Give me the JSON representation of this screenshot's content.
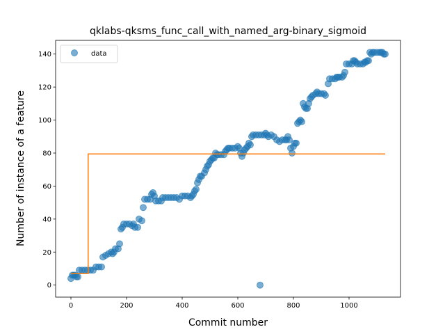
{
  "chart_data": {
    "type": "scatter",
    "title": "qklabs-qksms_func_call_with_named_arg-binary_sigmoid",
    "xlabel": "Commit number",
    "ylabel": "Number of instance of a feature",
    "xlim": [
      -55,
      1185
    ],
    "ylim": [
      -7.3,
      148.3
    ],
    "xticks": [
      0,
      200,
      400,
      600,
      800,
      1000
    ],
    "yticks": [
      0,
      20,
      40,
      60,
      80,
      100,
      120,
      140
    ],
    "grid": false,
    "legend_position": "top-left",
    "series": [
      {
        "name": "data",
        "kind": "scatter",
        "color": "#1f77b4",
        "points": [
          [
            0,
            4
          ],
          [
            5,
            6
          ],
          [
            10,
            6
          ],
          [
            15,
            6
          ],
          [
            20,
            5
          ],
          [
            25,
            5
          ],
          [
            30,
            9
          ],
          [
            40,
            9
          ],
          [
            50,
            9
          ],
          [
            60,
            9
          ],
          [
            70,
            9
          ],
          [
            80,
            9
          ],
          [
            90,
            11
          ],
          [
            100,
            11
          ],
          [
            110,
            11
          ],
          [
            115,
            17
          ],
          [
            125,
            18
          ],
          [
            135,
            19
          ],
          [
            145,
            20
          ],
          [
            150,
            19
          ],
          [
            155,
            20
          ],
          [
            160,
            22
          ],
          [
            170,
            22
          ],
          [
            175,
            25
          ],
          [
            180,
            34
          ],
          [
            185,
            35
          ],
          [
            190,
            37
          ],
          [
            200,
            37
          ],
          [
            210,
            37
          ],
          [
            220,
            36
          ],
          [
            225,
            37
          ],
          [
            230,
            35
          ],
          [
            240,
            35
          ],
          [
            245,
            40
          ],
          [
            255,
            39
          ],
          [
            260,
            47
          ],
          [
            265,
            52
          ],
          [
            275,
            52
          ],
          [
            285,
            52
          ],
          [
            290,
            55
          ],
          [
            295,
            56
          ],
          [
            300,
            54
          ],
          [
            305,
            51
          ],
          [
            315,
            51
          ],
          [
            325,
            51
          ],
          [
            330,
            53
          ],
          [
            340,
            53
          ],
          [
            350,
            53
          ],
          [
            360,
            53
          ],
          [
            370,
            53
          ],
          [
            380,
            53
          ],
          [
            390,
            52
          ],
          [
            400,
            54
          ],
          [
            410,
            54
          ],
          [
            420,
            54
          ],
          [
            430,
            53
          ],
          [
            435,
            54
          ],
          [
            440,
            55
          ],
          [
            445,
            57
          ],
          [
            450,
            58
          ],
          [
            455,
            62
          ],
          [
            460,
            64
          ],
          [
            465,
            66
          ],
          [
            470,
            66
          ],
          [
            480,
            68
          ],
          [
            485,
            70
          ],
          [
            490,
            72
          ],
          [
            495,
            73
          ],
          [
            500,
            75
          ],
          [
            505,
            76
          ],
          [
            510,
            77
          ],
          [
            515,
            77
          ],
          [
            520,
            80
          ],
          [
            525,
            79
          ],
          [
            530,
            79
          ],
          [
            540,
            79
          ],
          [
            550,
            79
          ],
          [
            555,
            81
          ],
          [
            560,
            82
          ],
          [
            565,
            83
          ],
          [
            570,
            83
          ],
          [
            580,
            83
          ],
          [
            590,
            83
          ],
          [
            600,
            84
          ],
          [
            605,
            83
          ],
          [
            610,
            80
          ],
          [
            615,
            78
          ],
          [
            620,
            80
          ],
          [
            625,
            82
          ],
          [
            630,
            83
          ],
          [
            635,
            84
          ],
          [
            640,
            86
          ],
          [
            645,
            85
          ],
          [
            650,
            90
          ],
          [
            655,
            91
          ],
          [
            665,
            91
          ],
          [
            675,
            91
          ],
          [
            680,
            0
          ],
          [
            685,
            91
          ],
          [
            695,
            91
          ],
          [
            700,
            92
          ],
          [
            705,
            91
          ],
          [
            710,
            90
          ],
          [
            720,
            91
          ],
          [
            730,
            90
          ],
          [
            740,
            88
          ],
          [
            750,
            87
          ],
          [
            760,
            88
          ],
          [
            770,
            88
          ],
          [
            775,
            88
          ],
          [
            780,
            90
          ],
          [
            785,
            88
          ],
          [
            790,
            83
          ],
          [
            795,
            80
          ],
          [
            800,
            84
          ],
          [
            805,
            86
          ],
          [
            810,
            86
          ],
          [
            815,
            98
          ],
          [
            820,
            99
          ],
          [
            825,
            100
          ],
          [
            830,
            99
          ],
          [
            835,
            110
          ],
          [
            840,
            108
          ],
          [
            845,
            107
          ],
          [
            850,
            107
          ],
          [
            855,
            110
          ],
          [
            860,
            113
          ],
          [
            865,
            114
          ],
          [
            870,
            115
          ],
          [
            880,
            116
          ],
          [
            885,
            117
          ],
          [
            890,
            116
          ],
          [
            900,
            116
          ],
          [
            910,
            116
          ],
          [
            915,
            115
          ],
          [
            925,
            122
          ],
          [
            930,
            125
          ],
          [
            940,
            125
          ],
          [
            950,
            125
          ],
          [
            955,
            126
          ],
          [
            960,
            126
          ],
          [
            965,
            126
          ],
          [
            975,
            126
          ],
          [
            980,
            127
          ],
          [
            985,
            129
          ],
          [
            990,
            134
          ],
          [
            1000,
            134
          ],
          [
            1010,
            134
          ],
          [
            1015,
            136
          ],
          [
            1020,
            136
          ],
          [
            1025,
            135
          ],
          [
            1030,
            134
          ],
          [
            1040,
            134
          ],
          [
            1050,
            134
          ],
          [
            1055,
            135
          ],
          [
            1060,
            135
          ],
          [
            1065,
            136
          ],
          [
            1070,
            136
          ],
          [
            1075,
            141
          ],
          [
            1080,
            140
          ],
          [
            1085,
            141
          ],
          [
            1090,
            141
          ],
          [
            1100,
            141
          ],
          [
            1110,
            141
          ],
          [
            1115,
            141
          ],
          [
            1120,
            141
          ],
          [
            1125,
            140
          ],
          [
            1130,
            140
          ]
        ]
      },
      {
        "name": "",
        "kind": "line",
        "color": "#ff7f0e",
        "points": [
          [
            0,
            7
          ],
          [
            62,
            7
          ],
          [
            62,
            79.5
          ],
          [
            1130,
            79.5
          ]
        ]
      }
    ]
  }
}
